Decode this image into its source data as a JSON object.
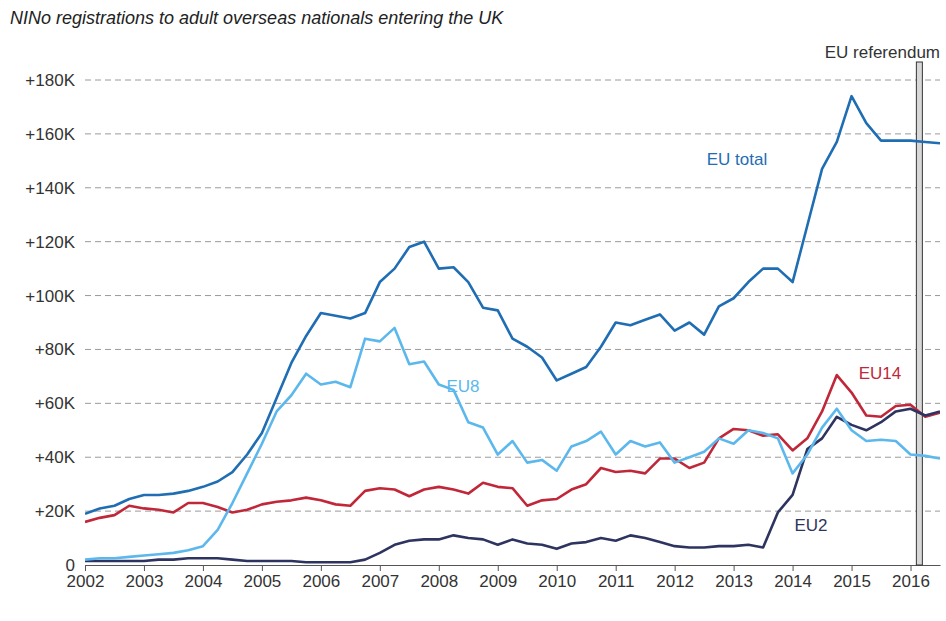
{
  "chart_data": {
    "type": "line",
    "title": "NINo registrations to adult overseas nationals entering the UK",
    "x": [
      2002,
      2002.25,
      2002.5,
      2002.75,
      2003,
      2003.25,
      2003.5,
      2003.75,
      2004,
      2004.25,
      2004.5,
      2004.75,
      2005,
      2005.25,
      2005.5,
      2005.75,
      2006,
      2006.25,
      2006.5,
      2006.75,
      2007,
      2007.25,
      2007.5,
      2007.75,
      2008,
      2008.25,
      2008.5,
      2008.75,
      2009,
      2009.25,
      2009.5,
      2009.75,
      2010,
      2010.25,
      2010.5,
      2010.75,
      2011,
      2011.25,
      2011.5,
      2011.75,
      2012,
      2012.25,
      2012.5,
      2012.75,
      2013,
      2013.25,
      2013.5,
      2013.75,
      2014,
      2014.25,
      2014.5,
      2014.75,
      2015,
      2015.25,
      2015.5,
      2015.75,
      2016,
      2016.25,
      2016.5
    ],
    "series": [
      {
        "name": "EU total",
        "color": "#1f6db3",
        "values": [
          19000,
          21000,
          22000,
          24500,
          26000,
          26000,
          26500,
          27500,
          29000,
          31000,
          34500,
          41000,
          49000,
          62000,
          75000,
          85000,
          93500,
          92500,
          91500,
          93500,
          105000,
          110000,
          118000,
          120000,
          110000,
          110500,
          105000,
          95500,
          94500,
          84000,
          81000,
          77000,
          68500,
          71000,
          73500,
          81000,
          90000,
          89000,
          91000,
          93000,
          87000,
          90000,
          85500,
          96000,
          99000,
          105000,
          110000,
          110000,
          105000,
          126000,
          147000,
          157000,
          174000,
          164000,
          157500,
          157500,
          157500,
          157000,
          156500
        ]
      },
      {
        "name": "EU8",
        "color": "#5cb8ec",
        "values": [
          2000,
          2500,
          2500,
          3000,
          3500,
          4000,
          4500,
          5500,
          7000,
          13000,
          23000,
          34000,
          45000,
          57000,
          63000,
          71000,
          67000,
          68000,
          66000,
          84000,
          83000,
          88000,
          74500,
          75500,
          67000,
          65000,
          53000,
          51000,
          41000,
          46000,
          38000,
          39000,
          35000,
          44000,
          46000,
          49500,
          41000,
          46000,
          44000,
          45500,
          38000,
          40000,
          42000,
          47000,
          45000,
          50000,
          49000,
          47000,
          34000,
          41000,
          51000,
          58000,
          50000,
          46000,
          46500,
          46000,
          41000,
          40500,
          39500
        ]
      },
      {
        "name": "EU14",
        "color": "#c0283a",
        "values": [
          16000,
          17500,
          18500,
          22000,
          21000,
          20500,
          19500,
          23000,
          23000,
          21500,
          19500,
          20500,
          22500,
          23500,
          24000,
          25000,
          24000,
          22500,
          22000,
          27500,
          28500,
          28000,
          25500,
          28000,
          29000,
          28000,
          26500,
          30500,
          29000,
          28500,
          22000,
          24000,
          24500,
          28000,
          30000,
          36000,
          34500,
          35000,
          34000,
          39500,
          39500,
          36000,
          38000,
          47000,
          50500,
          50000,
          48000,
          48500,
          42500,
          47000,
          57000,
          70500,
          64000,
          55500,
          55000,
          59000,
          59500,
          55000,
          56500
        ]
      },
      {
        "name": "EU2",
        "color": "#2e3460",
        "values": [
          1500,
          1500,
          1500,
          1500,
          1500,
          2000,
          2000,
          2500,
          2500,
          2500,
          2000,
          1500,
          1500,
          1500,
          1500,
          1000,
          1000,
          1000,
          1000,
          2000,
          4500,
          7500,
          9000,
          9500,
          9500,
          11000,
          10000,
          9500,
          7500,
          9500,
          8000,
          7500,
          6000,
          8000,
          8500,
          10000,
          9000,
          11000,
          10000,
          8500,
          7000,
          6500,
          6500,
          7000,
          7000,
          7500,
          6500,
          19500,
          26000,
          43000,
          47000,
          55000,
          52000,
          50000,
          53000,
          57000,
          58000,
          55500,
          57000
        ]
      }
    ],
    "xlim": [
      2002,
      2016.5
    ],
    "xticks": [
      2002,
      2003,
      2004,
      2005,
      2006,
      2007,
      2008,
      2009,
      2010,
      2011,
      2012,
      2013,
      2014,
      2015,
      2016
    ],
    "ylim": [
      0,
      180000
    ],
    "yticks": [
      0,
      {
        "value": 20000,
        "label": "+20K"
      },
      {
        "value": 40000,
        "label": "+40K"
      },
      {
        "value": 60000,
        "label": "+60K"
      },
      {
        "value": 80000,
        "label": "+80K"
      },
      {
        "value": 100000,
        "label": "+100K"
      },
      {
        "value": 120000,
        "label": "+120K"
      },
      {
        "value": 140000,
        "label": "+140K"
      },
      {
        "value": 160000,
        "label": "+160K"
      },
      {
        "value": 180000,
        "label": "+180K"
      }
    ],
    "grid": true,
    "annotations": [
      {
        "text": "EU referendum",
        "x": 2016.15
      }
    ]
  }
}
